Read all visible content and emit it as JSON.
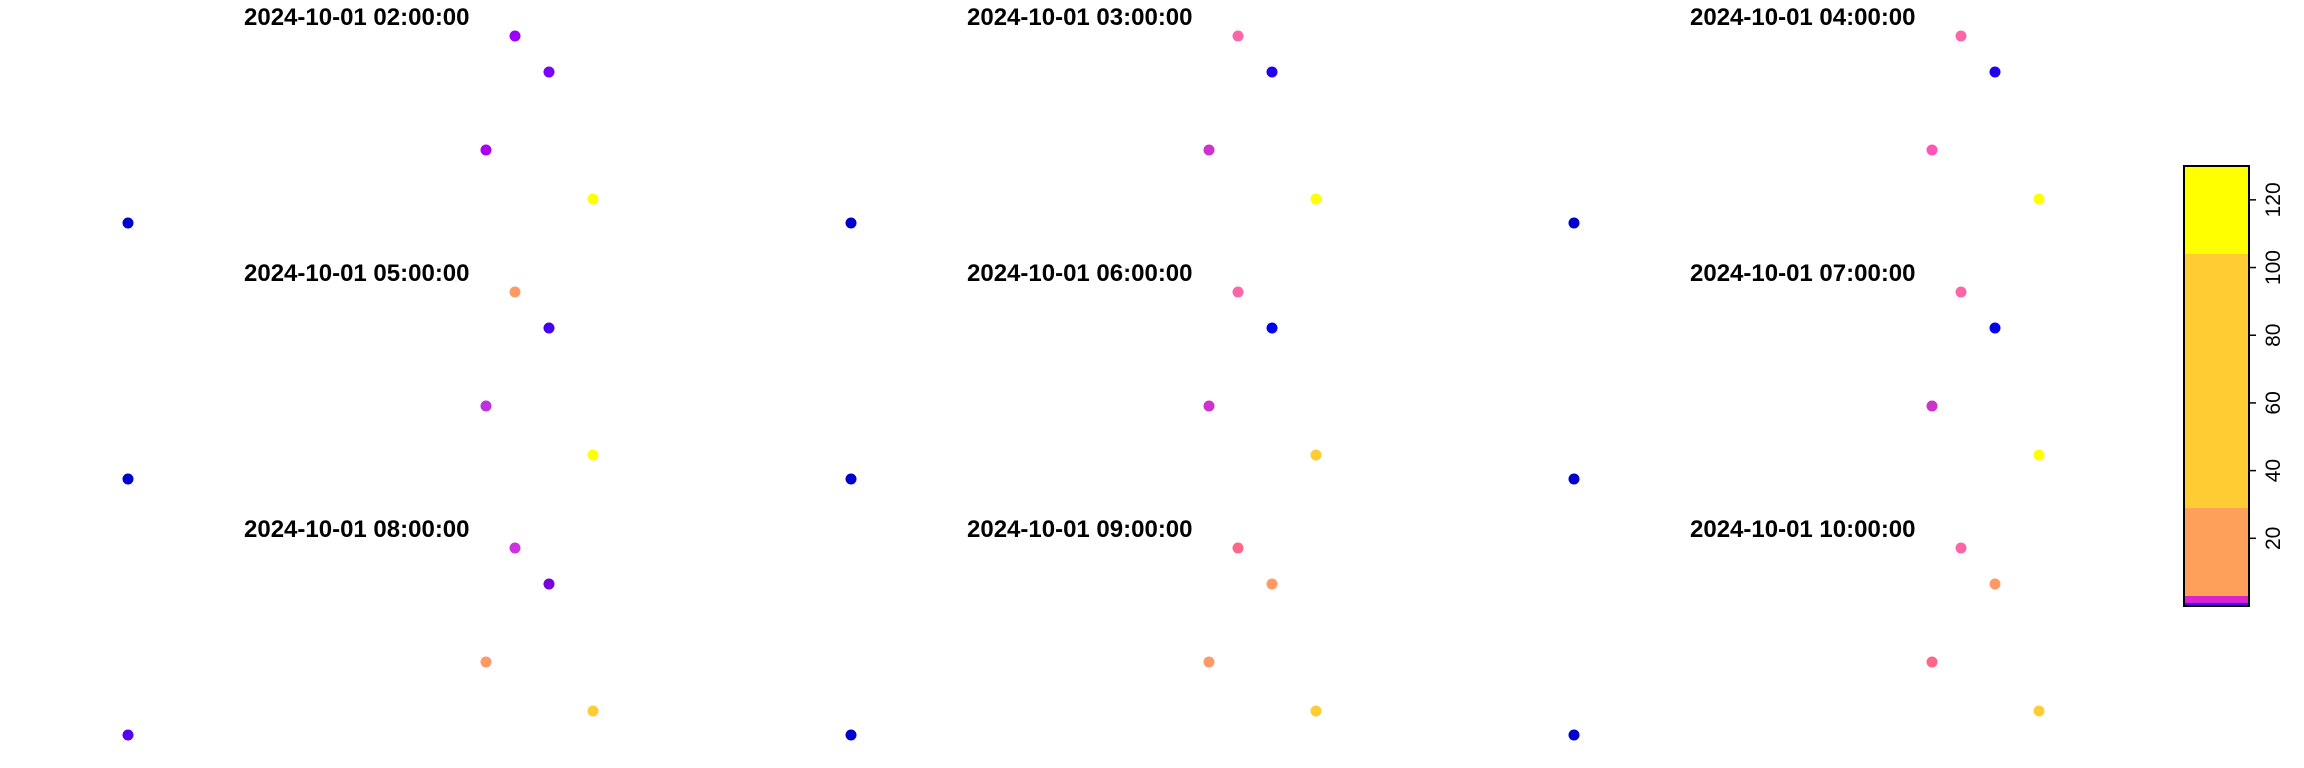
{
  "chart_data": {
    "type": "scatter",
    "panels": [
      {
        "title": "2024-10-01 02:00:00"
      },
      {
        "title": "2024-10-01 03:00:00"
      },
      {
        "title": "2024-10-01 04:00:00"
      },
      {
        "title": "2024-10-01 05:00:00"
      },
      {
        "title": "2024-10-01 06:00:00"
      },
      {
        "title": "2024-10-01 07:00:00"
      },
      {
        "title": "2024-10-01 08:00:00"
      },
      {
        "title": "2024-10-01 09:00:00"
      },
      {
        "title": "2024-10-01 10:00:00"
      }
    ],
    "point_colors": [
      [
        "#9900ff",
        "#7700ff",
        "#aa00ee",
        "#ffff00",
        "#0000cc"
      ],
      [
        "#ff66aa",
        "#2200ee",
        "#cc33cc",
        "#ffff00",
        "#0000cc"
      ],
      [
        "#ff66aa",
        "#2200ee",
        "#ff55bb",
        "#ffff00",
        "#0000cc"
      ],
      [
        "#ff9966",
        "#4400ee",
        "#bb33dd",
        "#ffff00",
        "#0000cc"
      ],
      [
        "#ff66aa",
        "#0000ee",
        "#cc33cc",
        "#ffcc33",
        "#0000cc"
      ],
      [
        "#ff66aa",
        "#0000ee",
        "#cc33cc",
        "#ffff00",
        "#0000cc"
      ],
      [
        "#cc33dd",
        "#7700dd",
        "#ff9966",
        "#ffcc33",
        "#5500ee"
      ],
      [
        "#ff6688",
        "#ff9966",
        "#ff9966",
        "#ffcc33",
        "#0000cc"
      ],
      [
        "#ff66aa",
        "#ff9966",
        "#ff6688",
        "#ffcc33",
        "#0000cc"
      ]
    ],
    "legend": {
      "position": "right",
      "ticks": [
        20,
        40,
        60,
        80,
        100,
        120
      ],
      "range": [
        0,
        130
      ],
      "bands": [
        {
          "from": 0,
          "to": 1,
          "color": "#6600ff"
        },
        {
          "from": 1,
          "to": 3,
          "color": "#dd22cc"
        },
        {
          "from": 3,
          "to": 29,
          "color": "#ffa05a"
        },
        {
          "from": 29,
          "to": 104,
          "color": "#ffcc33"
        },
        {
          "from": 104,
          "to": 130,
          "color": "#ffff00"
        }
      ]
    }
  }
}
